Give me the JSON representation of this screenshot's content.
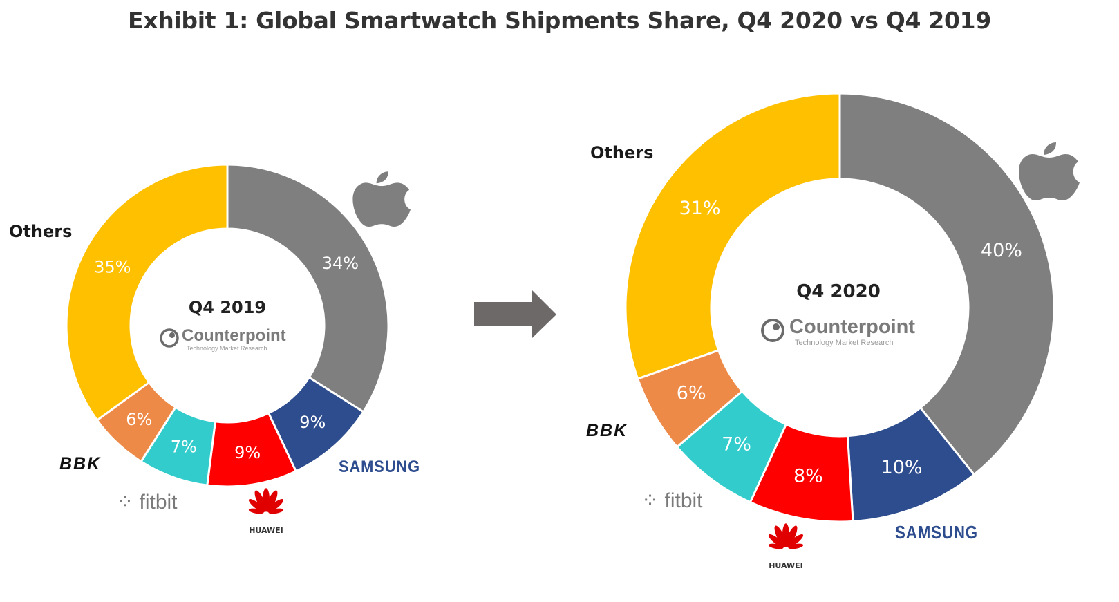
{
  "title": "Exhibit 1: Global Smartwatch Shipments Share, Q4 2020 vs Q4 2019",
  "colors": {
    "Apple": "#7f7f7f",
    "Samsung": "#2e4d8f",
    "Huawei": "#ff0000",
    "Fitbit": "#33cccc",
    "BBK": "#ed8a47",
    "Others": "#ffc000"
  },
  "watermark": {
    "name": "Counterpoint",
    "tagline": "Technology Market Research"
  },
  "brand_labels": {
    "others": "Others",
    "samsung": "SAMSUNG",
    "huawei": "HUAWEI",
    "fitbit": "fitbit",
    "bbk": "BBK",
    "apple_icon": "apple-logo-icon"
  },
  "chart_data": [
    {
      "type": "pie",
      "style": "donut",
      "center_label": "Q4 2019",
      "slices": [
        {
          "name": "Apple",
          "value": 34,
          "label": "34%"
        },
        {
          "name": "Samsung",
          "value": 9,
          "label": "9%"
        },
        {
          "name": "Huawei",
          "value": 9,
          "label": "9%"
        },
        {
          "name": "Fitbit",
          "value": 7,
          "label": "7%"
        },
        {
          "name": "BBK",
          "value": 6,
          "label": "6%"
        },
        {
          "name": "Others",
          "value": 35,
          "label": "35%"
        }
      ]
    },
    {
      "type": "pie",
      "style": "donut",
      "center_label": "Q4 2020",
      "slices": [
        {
          "name": "Apple",
          "value": 40,
          "label": "40%"
        },
        {
          "name": "Samsung",
          "value": 10,
          "label": "10%"
        },
        {
          "name": "Huawei",
          "value": 8,
          "label": "8%"
        },
        {
          "name": "Fitbit",
          "value": 7,
          "label": "7%"
        },
        {
          "name": "BBK",
          "value": 6,
          "label": "6%"
        },
        {
          "name": "Others",
          "value": 31,
          "label": "31%"
        }
      ]
    }
  ]
}
